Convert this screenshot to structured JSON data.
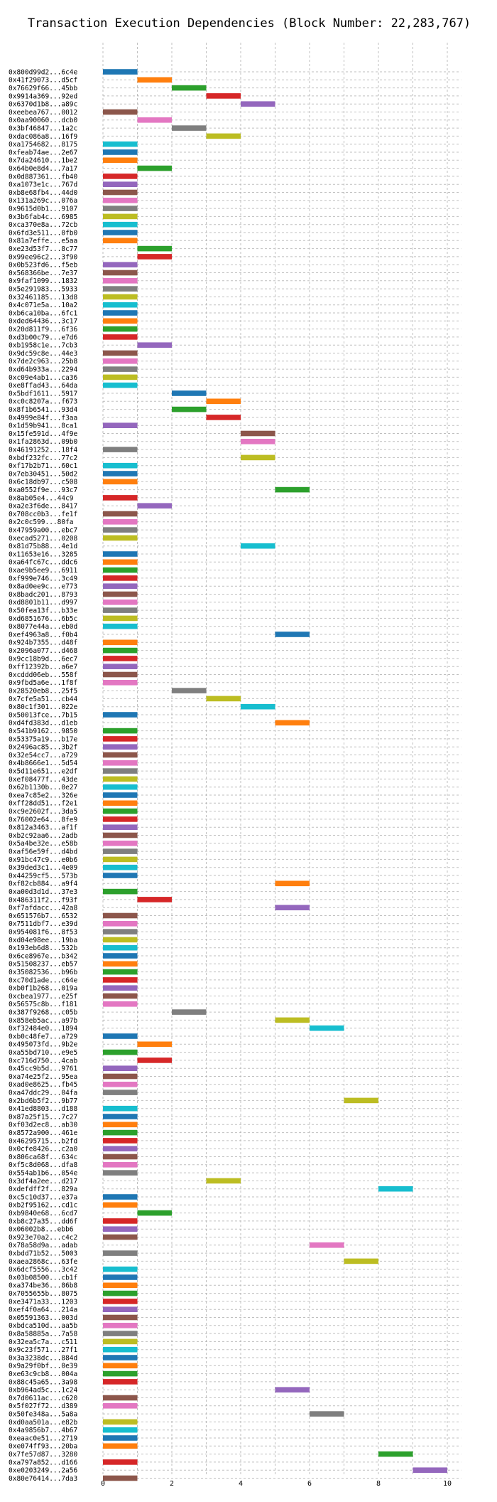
{
  "chart_data": {
    "type": "bar",
    "orientation": "horizontal-gantt",
    "title": "Transaction Execution Dependencies (Block Number: 22,283,767)",
    "xlabel": "",
    "ylabel": "",
    "xlim": [
      0,
      10.4
    ],
    "xticks": [
      0,
      2,
      4,
      6,
      8,
      10
    ],
    "grid": true,
    "palette": [
      "#1f77b4",
      "#ff7f0e",
      "#2ca02c",
      "#d62728",
      "#9467bd",
      "#8c564b",
      "#e377c2",
      "#7f7f7f",
      "#bcbd22",
      "#17becf"
    ],
    "transactions": [
      {
        "label": "0x800d99d2...6c4e",
        "start": 0
      },
      {
        "label": "0x41f29073...d5cf",
        "start": 1
      },
      {
        "label": "0x76629f66...45bb",
        "start": 2
      },
      {
        "label": "0x9914a369...92ed",
        "start": 3
      },
      {
        "label": "0x6370d1b8...a89c",
        "start": 4
      },
      {
        "label": "0xeebea767...0012",
        "start": 0
      },
      {
        "label": "0x0aa90060...dcb0",
        "start": 1
      },
      {
        "label": "0x3bf46847...1a2c",
        "start": 2
      },
      {
        "label": "0xdac086a8...16f9",
        "start": 3
      },
      {
        "label": "0xa1754682...8175",
        "start": 0
      },
      {
        "label": "0xfeab74ae...2e67",
        "start": 0
      },
      {
        "label": "0x7da24610...1be2",
        "start": 0
      },
      {
        "label": "0x64b0e8d4...7a17",
        "start": 1
      },
      {
        "label": "0x0d887361...fb40",
        "start": 0
      },
      {
        "label": "0xa1073e1c...767d",
        "start": 0
      },
      {
        "label": "0xb8e68fb4...44d0",
        "start": 0
      },
      {
        "label": "0x131a269c...076a",
        "start": 0
      },
      {
        "label": "0x9615d0b1...9107",
        "start": 0
      },
      {
        "label": "0x3b6fab4c...6985",
        "start": 0
      },
      {
        "label": "0xca370e8a...72cb",
        "start": 0
      },
      {
        "label": "0x6fd3e511...0fb0",
        "start": 0
      },
      {
        "label": "0x81a7effe...e5aa",
        "start": 0
      },
      {
        "label": "0xe23d53f7...8c77",
        "start": 1
      },
      {
        "label": "0x99ee96c2...3f90",
        "start": 1
      },
      {
        "label": "0x0b523fd6...f5eb",
        "start": 0
      },
      {
        "label": "0x568366be...7e37",
        "start": 0
      },
      {
        "label": "0x9faf1099...1832",
        "start": 0
      },
      {
        "label": "0x5e291983...5933",
        "start": 0
      },
      {
        "label": "0x32461185...13d8",
        "start": 0
      },
      {
        "label": "0x4c071e5a...10a2",
        "start": 0
      },
      {
        "label": "0xb6ca10ba...6fc1",
        "start": 0
      },
      {
        "label": "0xded64436...3c17",
        "start": 0
      },
      {
        "label": "0x20d811f9...6f36",
        "start": 0
      },
      {
        "label": "0xd3b00c79...e7d6",
        "start": 0
      },
      {
        "label": "0xb1958c1e...7cb3",
        "start": 1
      },
      {
        "label": "0x9dc59c8e...44e3",
        "start": 0
      },
      {
        "label": "0x7de2c963...25b8",
        "start": 0
      },
      {
        "label": "0xd64b933a...2294",
        "start": 0
      },
      {
        "label": "0xc09e4ab1...ca36",
        "start": 0
      },
      {
        "label": "0xe8ffad43...64da",
        "start": 0
      },
      {
        "label": "0x5bdf1611...5917",
        "start": 2
      },
      {
        "label": "0xc0c8207a...f673",
        "start": 3
      },
      {
        "label": "0x8f1b6541...93d4",
        "start": 2
      },
      {
        "label": "0x4999e84f...f3aa",
        "start": 3
      },
      {
        "label": "0x1d59b941...8ca1",
        "start": 0
      },
      {
        "label": "0x15fe591d...4f9e",
        "start": 4
      },
      {
        "label": "0x1fa2863d...09b0",
        "start": 4
      },
      {
        "label": "0x46191252...18f4",
        "start": 0
      },
      {
        "label": "0xbdf232fc...77c2",
        "start": 4
      },
      {
        "label": "0xf17b2b71...60c1",
        "start": 0
      },
      {
        "label": "0x7eb30451...50d2",
        "start": 0
      },
      {
        "label": "0x6c18db97...c508",
        "start": 0
      },
      {
        "label": "0xa0552f9e...93c7",
        "start": 5
      },
      {
        "label": "0x8ab05e4...44c9",
        "start": 0
      },
      {
        "label": "0xa2e3f6de...8417",
        "start": 1
      },
      {
        "label": "0x708cc0b3...fe1f",
        "start": 0
      },
      {
        "label": "0x2c0c599...80fa",
        "start": 0
      },
      {
        "label": "0x47959a00...ebc7",
        "start": 0
      },
      {
        "label": "0xecad5271...0208",
        "start": 0
      },
      {
        "label": "0x81d75b88...4e1d",
        "start": 4
      },
      {
        "label": "0x11653e16...3285",
        "start": 0
      },
      {
        "label": "0xa64fc67c...ddc6",
        "start": 0
      },
      {
        "label": "0xae9b5ee9...6911",
        "start": 0
      },
      {
        "label": "0xf999e746...3c49",
        "start": 0
      },
      {
        "label": "0x8ad0ee9c...e773",
        "start": 0
      },
      {
        "label": "0x8badc201...8793",
        "start": 0
      },
      {
        "label": "0xd8801b11...d997",
        "start": 0
      },
      {
        "label": "0x50fea13f...b33e",
        "start": 0
      },
      {
        "label": "0xd6851676...6b5c",
        "start": 0
      },
      {
        "label": "0x8077e44a...eb0d",
        "start": 0
      },
      {
        "label": "0xef4963a8...f0b4",
        "start": 5
      },
      {
        "label": "0x924b7355...d48f",
        "start": 0
      },
      {
        "label": "0x2096a077...d468",
        "start": 0
      },
      {
        "label": "0x9cc18b9d...6ec7",
        "start": 0
      },
      {
        "label": "0xff12392b...a6e7",
        "start": 0
      },
      {
        "label": "0xcddd06eb...558f",
        "start": 0
      },
      {
        "label": "0x9fbd5a6e...1f8f",
        "start": 0
      },
      {
        "label": "0x28520eb8...25f5",
        "start": 2
      },
      {
        "label": "0x7cfe5a51...cb44",
        "start": 3
      },
      {
        "label": "0x80c1f301...022e",
        "start": 4
      },
      {
        "label": "0x50013fce...7b15",
        "start": 0
      },
      {
        "label": "0xd4fd383d...d1eb",
        "start": 5
      },
      {
        "label": "0x541b9162...9850",
        "start": 0
      },
      {
        "label": "0x53375a19...b17e",
        "start": 0
      },
      {
        "label": "0x2496ac85...3b2f",
        "start": 0
      },
      {
        "label": "0x32e54cc7...a729",
        "start": 0
      },
      {
        "label": "0x4b8666e1...5d54",
        "start": 0
      },
      {
        "label": "0x5d11e651...e2df",
        "start": 0
      },
      {
        "label": "0xef08477f...43de",
        "start": 0
      },
      {
        "label": "0x62b1130b...0e27",
        "start": 0
      },
      {
        "label": "0xea7c85e2...326e",
        "start": 0
      },
      {
        "label": "0xff28dd51...f2e1",
        "start": 0
      },
      {
        "label": "0xc9e2602f...3da5",
        "start": 0
      },
      {
        "label": "0x76002e64...8fe9",
        "start": 0
      },
      {
        "label": "0x812a3463...af1f",
        "start": 0
      },
      {
        "label": "0xb2c92aa6...2adb",
        "start": 0
      },
      {
        "label": "0x5a4be32e...e58b",
        "start": 0
      },
      {
        "label": "0xaf56e59f...d4bd",
        "start": 0
      },
      {
        "label": "0x91bc47c9...e0b6",
        "start": 0
      },
      {
        "label": "0x39ded3c1...4e09",
        "start": 0
      },
      {
        "label": "0x44259cf5...573b",
        "start": 0
      },
      {
        "label": "0xf82cb884...a9f4",
        "start": 5
      },
      {
        "label": "0xa00d3d1d...37e3",
        "start": 0
      },
      {
        "label": "0x486311f2...f93f",
        "start": 1
      },
      {
        "label": "0xf7afdacc...42a8",
        "start": 5
      },
      {
        "label": "0x651576b7...6532",
        "start": 0
      },
      {
        "label": "0x7511dbf7...e39d",
        "start": 0
      },
      {
        "label": "0x954081f6...8f53",
        "start": 0
      },
      {
        "label": "0xd04e98ee...19ba",
        "start": 0
      },
      {
        "label": "0x193eb6d8...532b",
        "start": 0
      },
      {
        "label": "0x6ce8967e...b342",
        "start": 0
      },
      {
        "label": "0x51508237...eb57",
        "start": 0
      },
      {
        "label": "0x35082536...b96b",
        "start": 0
      },
      {
        "label": "0xc70d1ade...c64e",
        "start": 0
      },
      {
        "label": "0xb0f1b268...019a",
        "start": 0
      },
      {
        "label": "0xcbea1977...e25f",
        "start": 0
      },
      {
        "label": "0x56575c8b...f181",
        "start": 0
      },
      {
        "label": "0x387f9268...c05b",
        "start": 2
      },
      {
        "label": "0x858eb5ac...a97b",
        "start": 5
      },
      {
        "label": "0xf32484e0...1894",
        "start": 6
      },
      {
        "label": "0xb0c48fe7...a729",
        "start": 0
      },
      {
        "label": "0x495073fd...9b2e",
        "start": 1
      },
      {
        "label": "0xa55bd710...e9e5",
        "start": 0
      },
      {
        "label": "0xc716d750...4cab",
        "start": 1
      },
      {
        "label": "0x45cc9b5d...9761",
        "start": 0
      },
      {
        "label": "0xa74e25f2...95ea",
        "start": 0
      },
      {
        "label": "0xad0e8625...fb45",
        "start": 0
      },
      {
        "label": "0xa47ddc29...04fa",
        "start": 0
      },
      {
        "label": "0x2bd6b5f2...9b77",
        "start": 7
      },
      {
        "label": "0x41ed8803...d188",
        "start": 0
      },
      {
        "label": "0x87a25f15...7c27",
        "start": 0
      },
      {
        "label": "0xf03d2ec8...ab30",
        "start": 0
      },
      {
        "label": "0x8572a900...461e",
        "start": 0
      },
      {
        "label": "0x46295715...b2fd",
        "start": 0
      },
      {
        "label": "0x0cfe8426...c2a0",
        "start": 0
      },
      {
        "label": "0x806ca68f...634c",
        "start": 0
      },
      {
        "label": "0xf5c8d068...dfa8",
        "start": 0
      },
      {
        "label": "0x554ab1b6...054e",
        "start": 0
      },
      {
        "label": "0x3df4a2ee...d217",
        "start": 3
      },
      {
        "label": "0xdefdff2f...829a",
        "start": 8
      },
      {
        "label": "0xc5c10d37...e37a",
        "start": 0
      },
      {
        "label": "0xb2f95162...cd1c",
        "start": 0
      },
      {
        "label": "0xb9840e68...6cd7",
        "start": 1
      },
      {
        "label": "0xb8c27a35...dd6f",
        "start": 0
      },
      {
        "label": "0x06002b8...ebb6",
        "start": 0
      },
      {
        "label": "0x923e70a2...c4c2",
        "start": 0
      },
      {
        "label": "0x78a58d9a...adab",
        "start": 6
      },
      {
        "label": "0xbdd71b52...5003",
        "start": 0
      },
      {
        "label": "0xaea2868c...63fe",
        "start": 7
      },
      {
        "label": "0x6dcf5556...3c42",
        "start": 0
      },
      {
        "label": "0x03b08500...cb1f",
        "start": 0
      },
      {
        "label": "0xa374be36...86b8",
        "start": 0
      },
      {
        "label": "0x7055655b...8075",
        "start": 0
      },
      {
        "label": "0xe3471a33...1203",
        "start": 0
      },
      {
        "label": "0xef4f0a64...214a",
        "start": 0
      },
      {
        "label": "0x05591363...003d",
        "start": 0
      },
      {
        "label": "0xbdca510d...aa5b",
        "start": 0
      },
      {
        "label": "0x8a58885a...7a58",
        "start": 0
      },
      {
        "label": "0x32ea5c7a...c511",
        "start": 0
      },
      {
        "label": "0x9c23f571...27f1",
        "start": 0
      },
      {
        "label": "0x3a3238dc...884d",
        "start": 0
      },
      {
        "label": "0x9a29f0bf...0e39",
        "start": 0
      },
      {
        "label": "0xe63c9cb8...004a",
        "start": 0
      },
      {
        "label": "0x88c45a65...3a98",
        "start": 0
      },
      {
        "label": "0xb964ad5c...1c24",
        "start": 5
      },
      {
        "label": "0x7d0611ac...c620",
        "start": 0
      },
      {
        "label": "0x5f027f72...d389",
        "start": 0
      },
      {
        "label": "0x50fe348a...5a8a",
        "start": 6
      },
      {
        "label": "0xd0aa501a...e82b",
        "start": 0
      },
      {
        "label": "0x4a9856b7...4b67",
        "start": 0
      },
      {
        "label": "0xeaac0e51...2719",
        "start": 0
      },
      {
        "label": "0xe074ff93...20ba",
        "start": 0
      },
      {
        "label": "0x7fe57d87...3280",
        "start": 8
      },
      {
        "label": "0xa797a852...d166",
        "start": 0
      },
      {
        "label": "0xe0203249...2a56",
        "start": 9
      },
      {
        "label": "0x80e76414...7da3",
        "start": 0
      }
    ]
  }
}
